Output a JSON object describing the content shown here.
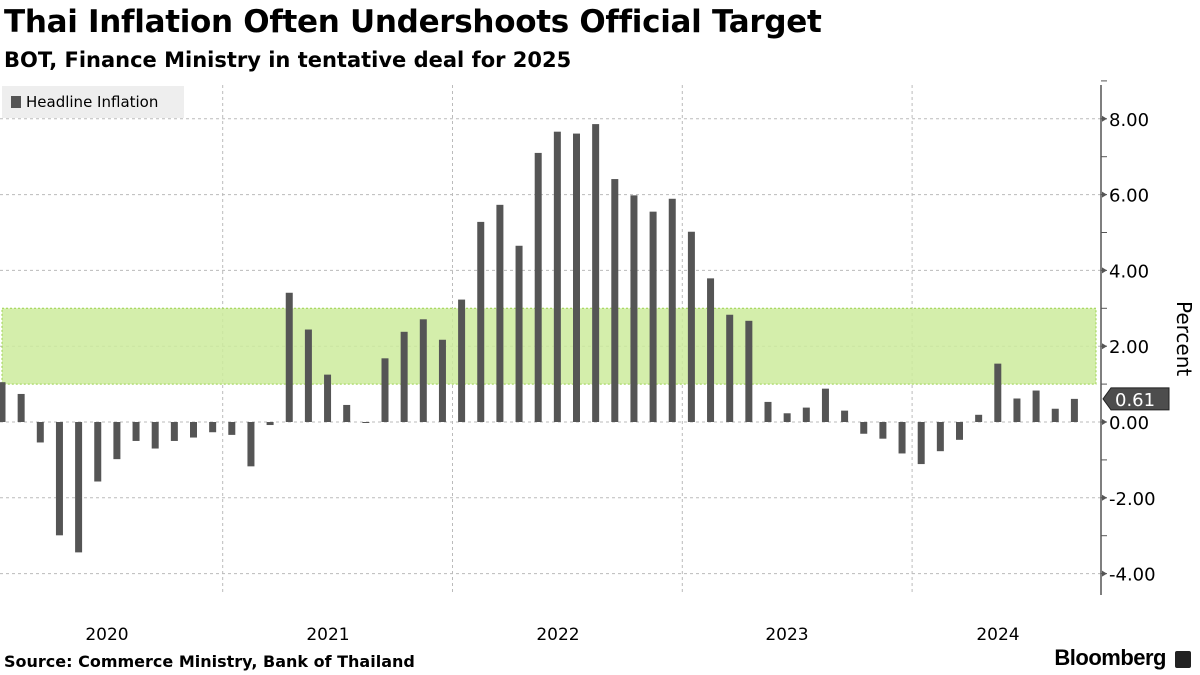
{
  "header": {
    "title": "Thai Inflation Often Undershoots Official Target",
    "subtitle": "BOT, Finance Ministry in tentative deal for 2025"
  },
  "footer": {
    "source": "Source: Commerce Ministry, Bank of Thailand",
    "brand": "Bloomberg"
  },
  "colors": {
    "bar": "#555555",
    "target_band": "#cdeb9c",
    "target_border": "#9bd24c",
    "label_bg": "#4d4d4d"
  },
  "chart_data": {
    "type": "bar",
    "title": "Thai Inflation Often Undershoots Official Target",
    "legend": [
      "Headline Inflation"
    ],
    "legend_position": "top-left",
    "ylabel": "Percent",
    "ylim": [
      -4.6,
      9
    ],
    "yticks": [
      "8.00",
      "6.00",
      "4.00",
      "2.00",
      "0.00",
      "-2.00",
      "-4.00"
    ],
    "ytick_values": [
      8,
      6,
      4,
      2,
      0,
      -2,
      -4
    ],
    "xticks": [
      "2020",
      "2021",
      "2022",
      "2023",
      "2024"
    ],
    "grid": true,
    "target_band": [
      1,
      3
    ],
    "last_value_label": "0.61",
    "start": "2020-01",
    "frequency": "monthly",
    "series": [
      {
        "name": "Headline Inflation",
        "values": [
          1.05,
          0.74,
          -0.54,
          -2.99,
          -3.44,
          -1.57,
          -0.98,
          -0.5,
          -0.7,
          -0.5,
          -0.41,
          -0.27,
          -0.34,
          -1.17,
          -0.08,
          3.41,
          2.44,
          1.25,
          0.45,
          -0.02,
          1.68,
          2.38,
          2.71,
          2.17,
          3.23,
          5.28,
          5.73,
          4.65,
          7.1,
          7.66,
          7.61,
          7.86,
          6.41,
          5.98,
          5.55,
          5.89,
          5.02,
          3.79,
          2.83,
          2.67,
          0.53,
          0.23,
          0.38,
          0.88,
          0.3,
          -0.31,
          -0.44,
          -0.83,
          -1.11,
          -0.77,
          -0.47,
          0.19,
          1.54,
          0.62,
          0.83,
          0.35,
          0.61
        ]
      }
    ]
  }
}
